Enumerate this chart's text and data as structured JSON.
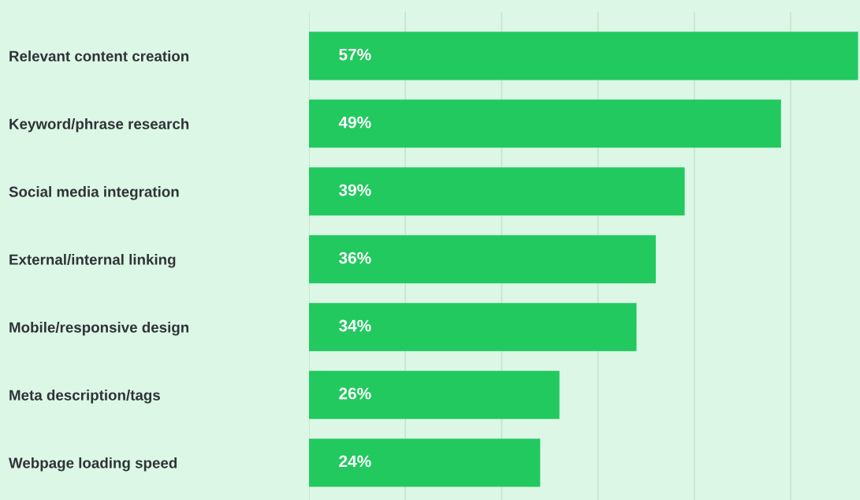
{
  "chart_data": {
    "type": "bar",
    "orientation": "horizontal",
    "categories": [
      "Relevant content creation",
      "Keyword/phrase research",
      "Social media integration",
      "External/internal linking",
      "Mobile/responsive design",
      "Meta description/tags",
      "Webpage loading speed"
    ],
    "values": [
      57,
      49,
      39,
      36,
      34,
      26,
      24
    ],
    "value_labels": [
      "57%",
      "49%",
      "39%",
      "36%",
      "34%",
      "26%",
      "24%"
    ],
    "color": "#22c95f",
    "xlim": [
      0,
      57.2
    ],
    "xticks": [
      {
        "value": 0,
        "label": null
      },
      {
        "value": 10,
        "label": null
      },
      {
        "value": 20,
        "label": null
      },
      {
        "value": 30,
        "label": null
      },
      {
        "value": 40,
        "label": null
      },
      {
        "value": 50,
        "label": null
      }
    ],
    "tick_labels": "y",
    "grid": "x"
  }
}
